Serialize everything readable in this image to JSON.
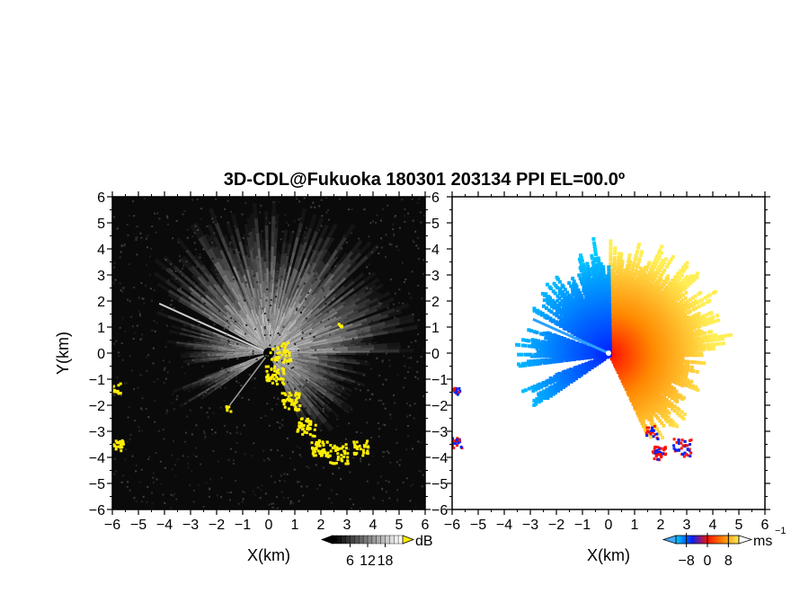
{
  "title": "3D-CDL@Fukuoka 180301 203134 PPI EL=00.0º",
  "chart_data": [
    {
      "type": "heatmap",
      "name": "reflectivity-ppi",
      "xlabel": "X(km)",
      "ylabel": "Y(km)",
      "xlim": [
        -6,
        6
      ],
      "ylim": [
        -6,
        6
      ],
      "xticks": [
        "−6",
        "−5",
        "−4",
        "−3",
        "−2",
        "−1",
        "0",
        "1",
        "2",
        "3",
        "4",
        "5",
        "6"
      ],
      "yticks": [
        "−6",
        "−5",
        "−4",
        "−3",
        "−2",
        "−1",
        "0",
        "1",
        "2",
        "3",
        "4",
        "5",
        "6"
      ],
      "colorbar": {
        "unit": "dB",
        "ticks": [
          "6",
          "12",
          "18"
        ],
        "tick_values": [
          6,
          12,
          18
        ],
        "range": [
          0,
          24
        ],
        "colors": {
          "low": "#000000",
          "high": "#ffffff"
        }
      },
      "highlight_color": "#ffee00"
    },
    {
      "type": "heatmap",
      "name": "doppler-velocity-ppi",
      "xlabel": "X(km)",
      "xlim": [
        -6,
        6
      ],
      "ylim": [
        -6,
        6
      ],
      "xticks": [
        "−6",
        "−5",
        "−4",
        "−3",
        "−2",
        "−1",
        "0",
        "1",
        "2",
        "3",
        "4",
        "5",
        "6"
      ],
      "yticks": [
        "−6",
        "−5",
        "−4",
        "−3",
        "−2",
        "−1",
        "0",
        "1",
        "2",
        "3",
        "4",
        "5",
        "6"
      ],
      "colorbar": {
        "unit": "ms",
        "unit_sup": "−1",
        "ticks": [
          "−8",
          "0",
          "8"
        ],
        "tick_values": [
          -8,
          0,
          8
        ],
        "range": [
          -12,
          12
        ],
        "colors": {
          "neg_far": "#00ccff",
          "neg_near": "#0022ff",
          "zero": "#ff1100",
          "pos_mid": "#ff8800",
          "pos_far": "#ffee55"
        }
      }
    }
  ]
}
